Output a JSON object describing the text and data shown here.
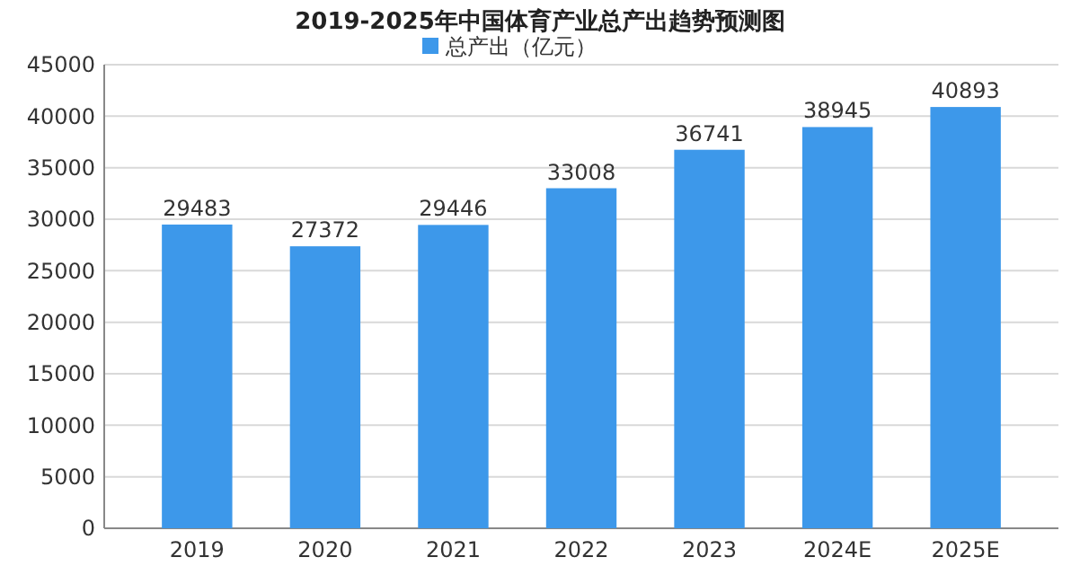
{
  "chart_data": {
    "type": "bar",
    "title": "2019-2025年中国体育产业总产出趋势预测图",
    "categories": [
      "2019",
      "2020",
      "2021",
      "2022",
      "2023",
      "2024E",
      "2025E"
    ],
    "series": [
      {
        "name": "总产出（亿元）",
        "color": "#3d98ea",
        "values": [
          29483,
          27372,
          29446,
          33008,
          36741,
          38945,
          40893
        ]
      }
    ],
    "ylim": [
      0,
      45000
    ],
    "yticks": [
      0,
      5000,
      10000,
      15000,
      20000,
      25000,
      30000,
      35000,
      40000,
      45000
    ],
    "grid": "y",
    "legend": "top",
    "data_labels": true
  }
}
